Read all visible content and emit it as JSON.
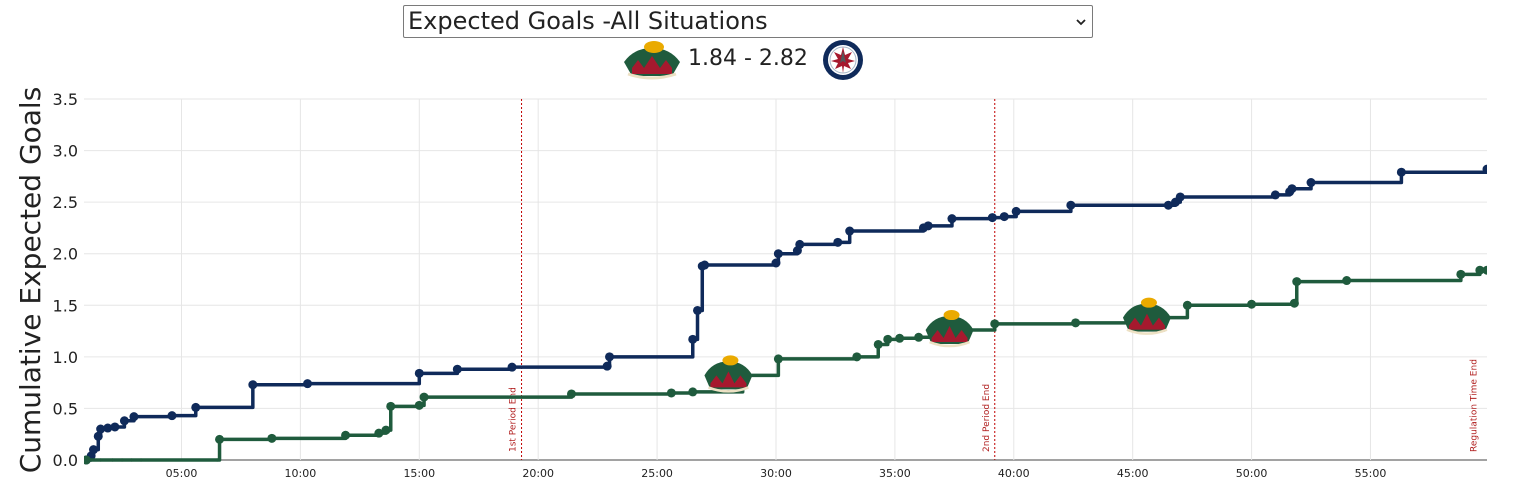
{
  "selector": {
    "selected": "Expected Goals -All Situations"
  },
  "score": {
    "text": "1.84 - 2.82",
    "home_logo_icon": "minnesota-wild-logo-icon",
    "away_logo_icon": "winnipeg-jets-logo-icon"
  },
  "colors": {
    "home": "#1f5b3d",
    "away": "#0f2a5a",
    "period_line": "#c00000"
  },
  "chart_data": {
    "type": "line",
    "title": "",
    "xlabel": "",
    "ylabel": "Cumulative Expected Goals",
    "xlim": [
      0.9,
      59.9
    ],
    "ylim": [
      0,
      3.5
    ],
    "xticks": [
      {
        "value": 5,
        "label": "05:00"
      },
      {
        "value": 10,
        "label": "10:00"
      },
      {
        "value": 15,
        "label": "15:00"
      },
      {
        "value": 20,
        "label": "20:00"
      },
      {
        "value": 25,
        "label": "25:00"
      },
      {
        "value": 30,
        "label": "30:00"
      },
      {
        "value": 35,
        "label": "35:00"
      },
      {
        "value": 40,
        "label": "40:00"
      },
      {
        "value": 45,
        "label": "45:00"
      },
      {
        "value": 50,
        "label": "50:00"
      },
      {
        "value": 55,
        "label": "55:00"
      }
    ],
    "yticks": [
      {
        "value": 0,
        "label": "0.0"
      },
      {
        "value": 0.5,
        "label": "0.5"
      },
      {
        "value": 1,
        "label": "1.0"
      },
      {
        "value": 1.5,
        "label": "1.5"
      },
      {
        "value": 2,
        "label": "2.0"
      },
      {
        "value": 2.5,
        "label": "2.5"
      },
      {
        "value": 3,
        "label": "3.0"
      },
      {
        "value": 3.5,
        "label": "3.5"
      }
    ],
    "grid": true,
    "vlines": [
      {
        "x": 19.3,
        "label": "1st Period End"
      },
      {
        "x": 39.2,
        "label": "2nd Period End"
      },
      {
        "x": 59.8,
        "label": "Regulation Time End"
      }
    ],
    "series": [
      {
        "key": "away",
        "x": [
          1.0,
          1.2,
          1.3,
          1.5,
          1.6,
          1.9,
          2.2,
          2.6,
          3.0,
          4.6,
          5.6,
          8.0,
          10.3,
          15.0,
          16.6,
          18.9,
          22.9,
          23.0,
          26.5,
          26.7,
          26.9,
          27.0,
          30.0,
          30.1,
          30.9,
          31.0,
          32.6,
          33.1,
          36.2,
          36.4,
          37.4,
          39.1,
          39.6,
          40.1,
          42.4,
          46.5,
          46.8,
          47.0,
          51.0,
          51.6,
          51.7,
          52.5,
          56.3,
          59.9
        ],
        "y": [
          0.0,
          0.04,
          0.1,
          0.23,
          0.3,
          0.31,
          0.32,
          0.38,
          0.42,
          0.43,
          0.51,
          0.73,
          0.74,
          0.84,
          0.88,
          0.9,
          0.91,
          1.0,
          1.17,
          1.45,
          1.88,
          1.89,
          1.91,
          2.0,
          2.03,
          2.09,
          2.11,
          2.22,
          2.25,
          2.27,
          2.34,
          2.35,
          2.36,
          2.41,
          2.47,
          2.47,
          2.5,
          2.55,
          2.57,
          2.6,
          2.63,
          2.69,
          2.79,
          2.82
        ]
      },
      {
        "key": "home",
        "x": [
          1.0,
          1.6,
          2.1,
          2.5,
          2.9,
          3.3,
          6.5,
          6.6,
          8.8,
          11.9,
          13.3,
          13.6,
          13.8,
          15.0,
          15.2,
          21.4,
          25.6,
          26.5,
          28.6,
          30.1,
          33.4,
          34.3,
          34.7,
          35.2,
          36.0,
          37.7,
          39.2,
          42.6,
          45.6,
          47.3,
          50.0,
          51.8,
          51.9,
          54.0,
          58.8,
          59.6,
          59.9
        ],
        "y": [
          0.0,
          0.0,
          0.0,
          0.0,
          0.0,
          0.0,
          0.0,
          0.2,
          0.21,
          0.24,
          0.26,
          0.29,
          0.52,
          0.53,
          0.61,
          0.64,
          0.65,
          0.66,
          0.82,
          0.98,
          1.0,
          1.12,
          1.17,
          1.18,
          1.19,
          1.26,
          1.32,
          1.33,
          1.38,
          1.5,
          1.51,
          1.52,
          1.73,
          1.74,
          1.8,
          1.84,
          1.84
        ]
      }
    ],
    "goal_markers": [
      {
        "team": "home",
        "x": 28.0,
        "y": 0.82
      },
      {
        "team": "home",
        "x": 37.3,
        "y": 1.26
      },
      {
        "team": "home",
        "x": 45.6,
        "y": 1.38
      }
    ]
  }
}
